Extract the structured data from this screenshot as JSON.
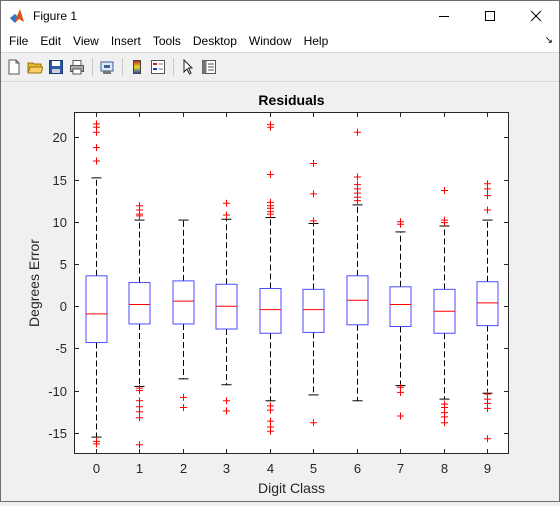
{
  "window": {
    "title": "Figure 1"
  },
  "menu": [
    "File",
    "Edit",
    "View",
    "Insert",
    "Tools",
    "Desktop",
    "Window",
    "Help"
  ],
  "toolbar": [
    "new-figure-icon",
    "open-file-icon",
    "save-icon",
    "print-icon",
    "link-plot-icon",
    "colorbar-icon",
    "legend-icon",
    "edit-plot-arrow-icon",
    "property-inspector-icon"
  ],
  "chart_data": {
    "type": "boxplot",
    "title": "Residuals",
    "xlabel": "Digit Class",
    "ylabel": "Degrees Error",
    "categories": [
      "0",
      "1",
      "2",
      "3",
      "4",
      "5",
      "6",
      "7",
      "8",
      "9"
    ],
    "ylim": [
      -17.5,
      23
    ],
    "yticks": [
      -15,
      -10,
      -5,
      0,
      5,
      10,
      15,
      20
    ],
    "box_color": "#4b4bff",
    "median_color": "#ff0000",
    "outlier_color": "#ff0000",
    "boxes": [
      {
        "label": "0",
        "whisker_low": -15.5,
        "q1": -4.3,
        "median": -0.9,
        "q3": 3.6,
        "whisker_high": 15.2,
        "outliers": [
          -16.0,
          -16.3,
          17.2,
          18.8,
          20.6,
          21.2,
          21.6
        ]
      },
      {
        "label": "1",
        "whisker_low": -9.5,
        "q1": -2.1,
        "median": 0.2,
        "q3": 2.8,
        "whisker_high": 10.2,
        "outliers": [
          -9.7,
          -10.0,
          -11.2,
          -11.9,
          -12.5,
          -13.2,
          -16.4,
          10.7,
          10.9,
          11.4,
          11.9
        ]
      },
      {
        "label": "2",
        "whisker_low": -8.6,
        "q1": -2.1,
        "median": 0.6,
        "q3": 3.0,
        "whisker_high": 10.2,
        "outliers": [
          -10.8,
          -12.0
        ]
      },
      {
        "label": "3",
        "whisker_low": -9.3,
        "q1": -2.7,
        "median": 0.0,
        "q3": 2.6,
        "whisker_high": 10.3,
        "outliers": [
          -11.2,
          -12.4,
          10.8,
          12.2
        ]
      },
      {
        "label": "4",
        "whisker_low": -11.2,
        "q1": -3.2,
        "median": -0.4,
        "q3": 2.1,
        "whisker_high": 10.5,
        "outliers": [
          -11.8,
          -12.3,
          -13.6,
          -14.3,
          -14.8,
          10.9,
          11.2,
          11.6,
          11.9,
          12.3,
          15.6,
          21.2,
          21.5
        ]
      },
      {
        "label": "5",
        "whisker_low": -10.5,
        "q1": -3.1,
        "median": -0.4,
        "q3": 2.0,
        "whisker_high": 9.8,
        "outliers": [
          -13.8,
          10.1,
          13.3,
          16.9
        ]
      },
      {
        "label": "6",
        "whisker_low": -11.2,
        "q1": -2.2,
        "median": 0.7,
        "q3": 3.6,
        "whisker_high": 12.0,
        "outliers": [
          12.5,
          12.9,
          13.4,
          13.9,
          14.4,
          15.3,
          20.6
        ]
      },
      {
        "label": "7",
        "whisker_low": -9.4,
        "q1": -2.4,
        "median": 0.2,
        "q3": 2.3,
        "whisker_high": 8.8,
        "outliers": [
          -9.6,
          -10.2,
          -13.0,
          9.7,
          10.0
        ]
      },
      {
        "label": "8",
        "whisker_low": -11.0,
        "q1": -3.2,
        "median": -0.6,
        "q3": 2.0,
        "whisker_high": 9.5,
        "outliers": [
          -11.6,
          -12.0,
          -12.6,
          -13.1,
          -13.8,
          9.9,
          10.2,
          13.7
        ]
      },
      {
        "label": "9",
        "whisker_low": -10.3,
        "q1": -2.3,
        "median": 0.4,
        "q3": 2.9,
        "whisker_high": 10.2,
        "outliers": [
          -10.4,
          -11.0,
          -11.5,
          -12.1,
          -15.7,
          11.4,
          13.1,
          13.9,
          14.5
        ]
      }
    ]
  }
}
